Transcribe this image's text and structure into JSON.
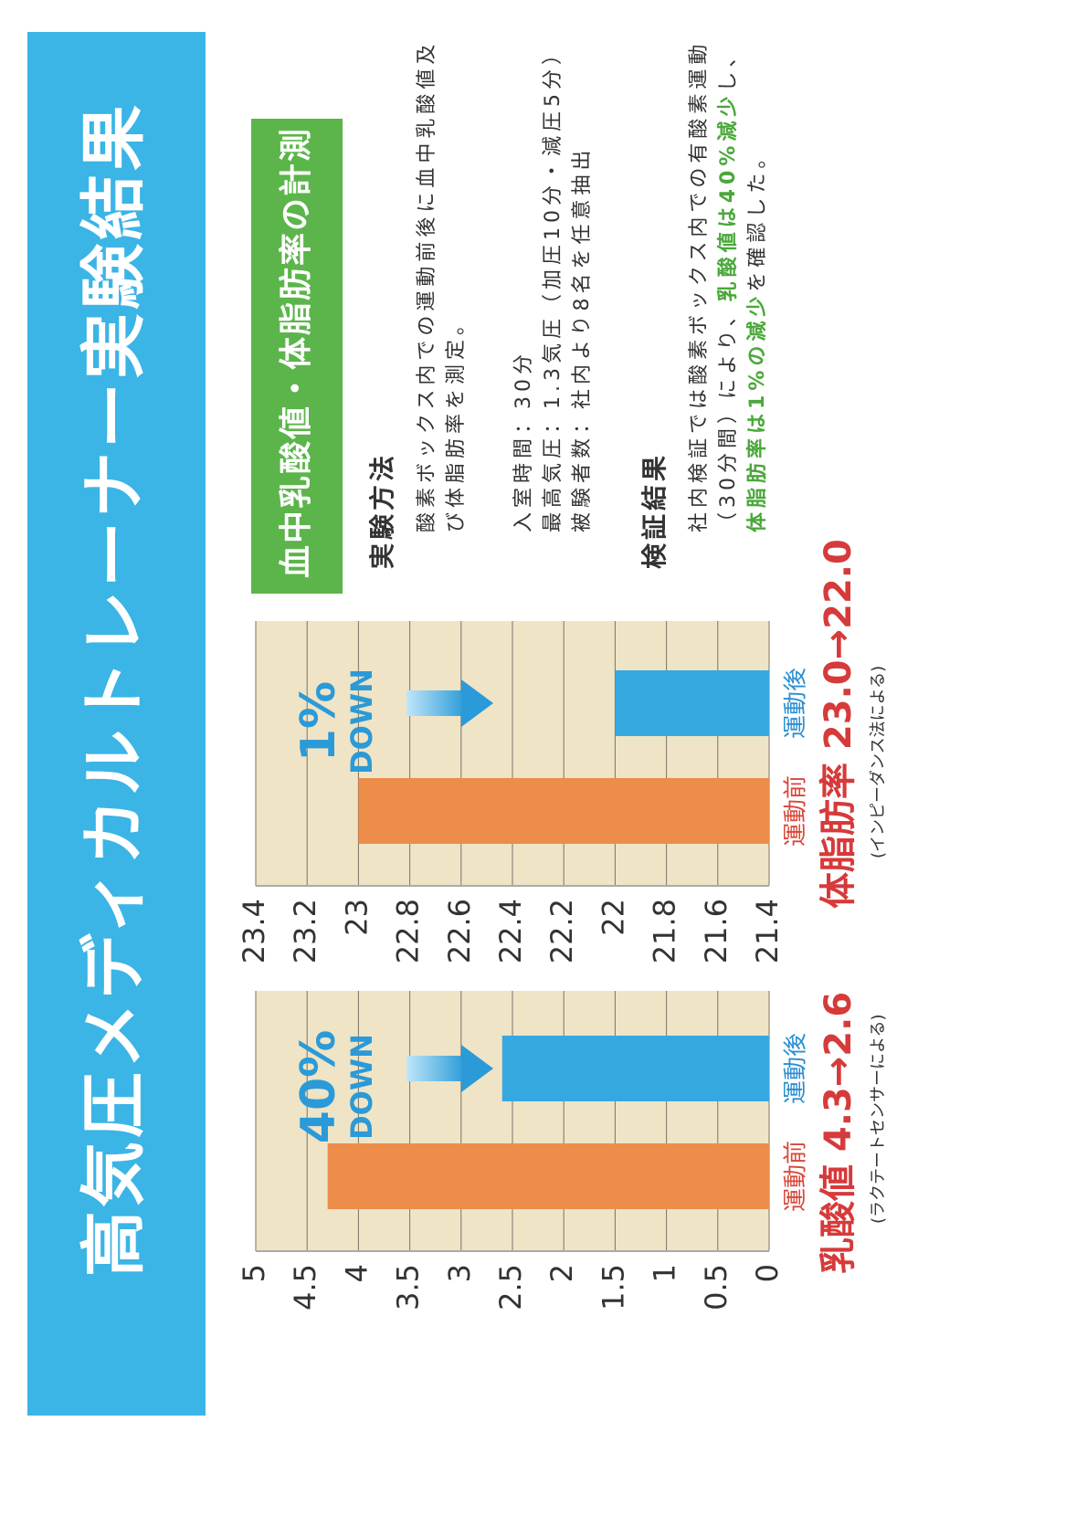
{
  "title": "高気圧メディカルトレーナー実験結果",
  "chart_data": [
    {
      "type": "bar",
      "categories": [
        "運動前",
        "運動後"
      ],
      "values": [
        4.3,
        2.6
      ],
      "colors": [
        "#ec8d4a",
        "#36a8e0"
      ],
      "ylim": [
        0,
        5
      ],
      "yticks": [
        0,
        0.5,
        1,
        1.5,
        2,
        2.5,
        3,
        3.5,
        4,
        4.5,
        5
      ],
      "grid": true,
      "annotation": "40%",
      "annotation_sub": "DOWN",
      "caption": "乳酸値 4.3→2.6",
      "note": "(ラクテートセンサーによる)"
    },
    {
      "type": "bar",
      "categories": [
        "運動前",
        "運動後"
      ],
      "values": [
        23.0,
        22.0
      ],
      "colors": [
        "#ec8d4a",
        "#36a8e0"
      ],
      "ylim": [
        21.4,
        23.4
      ],
      "yticks": [
        21.4,
        21.6,
        21.8,
        22,
        22.2,
        22.4,
        22.6,
        22.8,
        23,
        23.2,
        23.4
      ],
      "grid": true,
      "annotation": "1%",
      "annotation_sub": "DOWN",
      "caption": "体脂肪率 23.0→22.0",
      "note": "(インピーダンス法による)"
    }
  ],
  "panel": {
    "heading": "血中乳酸値・体脂肪率の計測",
    "sections": [
      {
        "title": "実験方法",
        "paragraphs": [
          [
            [
              {
                "text": "酸素ボックス内での運動前後に血中乳酸値及"
              }
            ],
            [
              {
                "text": "び体脂肪率を測定。"
              }
            ]
          ],
          [
            [
              {
                "text": "入室時間：30分"
              }
            ],
            [
              {
                "text": "最高気圧：1.3気圧（加圧10分・減圧5分）"
              }
            ],
            [
              {
                "text": "被験者数：社内より8名を任意抽出"
              }
            ]
          ]
        ]
      },
      {
        "title": "検証結果",
        "paragraphs": [
          [
            [
              {
                "text": "社内検証では酸素ボックス内での有酸素運動"
              }
            ],
            [
              {
                "text": "（30分間）により、"
              },
              {
                "text": "乳酸値は40%減少",
                "em": true
              },
              {
                "text": "し、"
              }
            ],
            [
              {
                "text": "体脂肪率は1%の減少",
                "em": true
              },
              {
                "text": "を確認した。"
              }
            ]
          ]
        ]
      }
    ]
  }
}
